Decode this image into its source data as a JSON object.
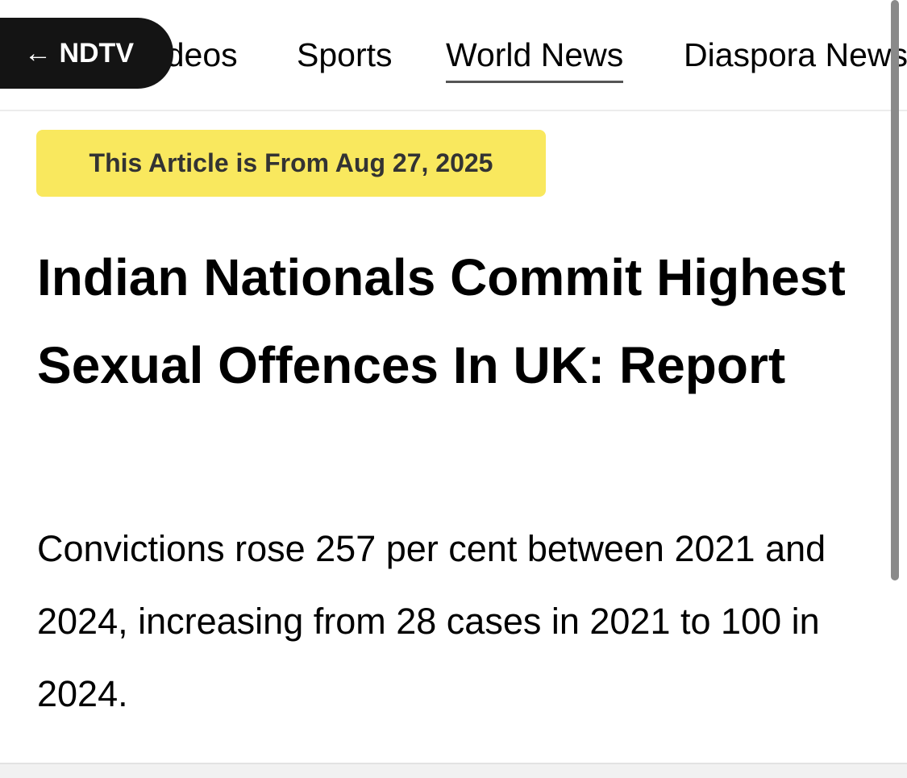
{
  "header": {
    "back_button": "← NDTV",
    "nav": [
      "Videos",
      "Sports",
      "World News",
      "Diaspora News"
    ],
    "active_nav": 2
  },
  "article": {
    "badge": "This Article is From Aug 27, 2025",
    "title": "Indian Nationals Commit Highest Sexual Offences In UK: Report",
    "summary": "Convictions rose 257 per cent between 2021 and 2024, increasing from 28 cases in 2021 to 100 in 2024."
  }
}
